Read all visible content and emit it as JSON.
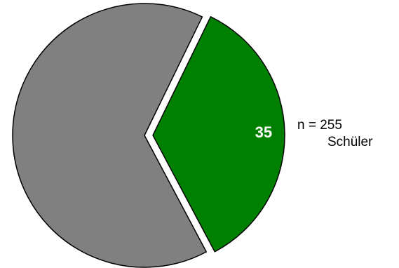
{
  "chart_data": {
    "type": "pie",
    "slices": [
      {
        "value": 35,
        "label": "35",
        "color": "#008000",
        "exploded": true
      },
      {
        "value": 65,
        "label": "",
        "color": "#808080",
        "exploded": false
      }
    ],
    "start_angle_deg": 26,
    "direction": "clockwise",
    "annotation": {
      "line1": "n = 255",
      "line2": "Schüler"
    },
    "legend": "none",
    "title": ""
  }
}
